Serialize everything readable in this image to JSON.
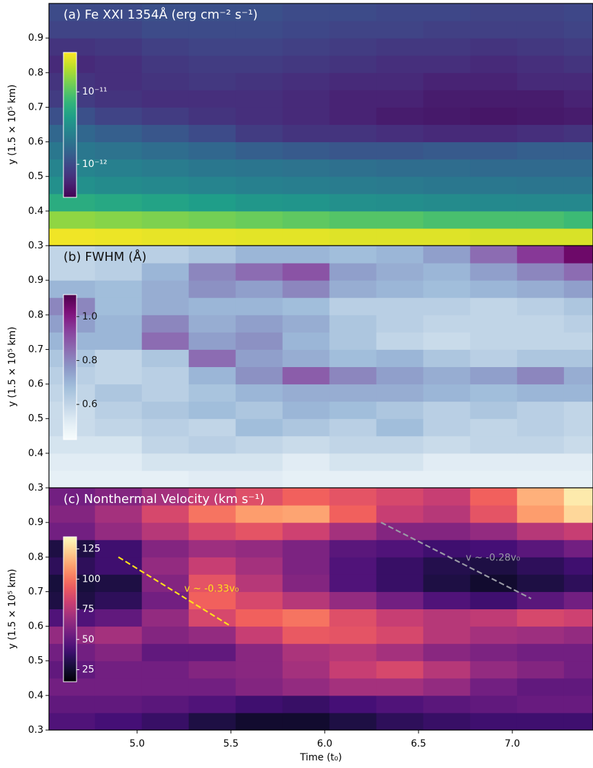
{
  "chart_data": [
    {
      "type": "heatmap",
      "title": "(a) Fe XXI 1354Å (erg cm⁻² s⁻¹)",
      "title_color": "#ffffff",
      "ylabel": "y (1.5 × 10⁵ km)",
      "xlim": [
        4.53,
        7.43
      ],
      "ylim": [
        0.3,
        1.0
      ],
      "yticks": [
        0.3,
        0.4,
        0.5,
        0.6,
        0.7,
        0.8,
        0.9
      ],
      "x": [
        4.65,
        4.9,
        5.15,
        5.4,
        5.65,
        5.9,
        6.15,
        6.4,
        6.65,
        6.9,
        7.15,
        7.4
      ],
      "y": [
        0.325,
        0.375,
        0.425,
        0.475,
        0.525,
        0.575,
        0.625,
        0.675,
        0.725,
        0.775,
        0.825,
        0.875,
        0.925,
        0.975
      ],
      "z": [
        [
          3.2e-11,
          3.1e-11,
          3e-11,
          3e-11,
          2.9e-11,
          2.9e-11,
          2.8e-11,
          2.8e-11,
          2.8e-11,
          2.7e-11,
          2.7e-11,
          2.7e-11
        ],
        [
          1.6e-11,
          1.5e-11,
          1.4e-11,
          1.3e-11,
          1.2e-11,
          1.1e-11,
          1e-11,
          1e-11,
          9e-12,
          9e-12,
          9e-12,
          8e-12
        ],
        [
          6e-12,
          5.5e-12,
          5e-12,
          4.5e-12,
          4e-12,
          3.8e-12,
          3.5e-12,
          3.4e-12,
          3.2e-12,
          3.1e-12,
          3e-12,
          3e-12
        ],
        [
          3.5e-12,
          3.2e-12,
          3e-12,
          2.8e-12,
          2.6e-12,
          2.5e-12,
          2.4e-12,
          2.3e-12,
          2.2e-12,
          2.2e-12,
          2.1e-12,
          2.1e-12
        ],
        [
          2.8e-12,
          2.6e-12,
          2.4e-12,
          2.2e-12,
          2.1e-12,
          2e-12,
          1.9e-12,
          1.8e-12,
          1.8e-12,
          1.7e-12,
          1.7e-12,
          1.7e-12
        ],
        [
          2.2e-12,
          2e-12,
          1.8e-12,
          1.6e-12,
          1.4e-12,
          1.3e-12,
          1.2e-12,
          1.2e-12,
          1.3e-12,
          1.3e-12,
          1.4e-12,
          1.4e-12
        ],
        [
          1.6e-12,
          1.4e-12,
          1.2e-12,
          1e-12,
          8e-13,
          7e-13,
          7e-13,
          6.5e-13,
          6e-13,
          6e-13,
          6.5e-13,
          7e-13
        ],
        [
          1.1e-12,
          9e-13,
          8e-13,
          7e-13,
          6.5e-13,
          6e-13,
          5.5e-13,
          5e-13,
          4.8e-13,
          4.6e-13,
          4.8e-13,
          5e-13
        ],
        [
          8e-13,
          7e-13,
          6.5e-13,
          6.5e-13,
          6.5e-13,
          6e-13,
          5.5e-13,
          5.5e-13,
          5e-13,
          5e-13,
          5e-13,
          5.5e-13
        ],
        [
          7e-13,
          6.5e-13,
          7e-13,
          7.5e-13,
          7e-13,
          6.5e-13,
          6e-13,
          6e-13,
          5.5e-13,
          5.5e-13,
          6e-13,
          6e-13
        ],
        [
          6e-13,
          6.5e-13,
          7.5e-13,
          8e-13,
          8e-13,
          7.5e-13,
          7e-13,
          6.5e-13,
          6.5e-13,
          6e-13,
          6.5e-13,
          7e-13
        ],
        [
          7e-13,
          7.5e-13,
          8.5e-13,
          9e-13,
          9e-13,
          8.5e-13,
          8e-13,
          7.5e-13,
          7.5e-13,
          7e-13,
          7.5e-13,
          8e-13
        ],
        [
          9e-13,
          9e-13,
          1e-12,
          1e-12,
          1e-12,
          9.5e-13,
          9e-13,
          9e-13,
          8.5e-13,
          8.5e-13,
          8.5e-13,
          9e-13
        ],
        [
          1e-12,
          1e-12,
          1.1e-12,
          1.1e-12,
          1.1e-12,
          1e-12,
          1e-12,
          9.5e-13,
          9.5e-13,
          9e-13,
          9e-13,
          9.5e-13
        ]
      ],
      "colorbar": {
        "cmap": "viridis",
        "scale": "log",
        "lim": [
          3.5e-13,
          3.5e-11
        ],
        "label_color": "#ffffff",
        "ticks": [
          {
            "value": 1e-11,
            "label": "10⁻¹¹"
          },
          {
            "value": 1e-12,
            "label": "10⁻¹²"
          }
        ]
      }
    },
    {
      "type": "heatmap",
      "title": "(b) FWHM (Å)",
      "title_color": "#111111",
      "ylabel": "y (1.5 × 10⁵ km)",
      "xlim": [
        4.53,
        7.43
      ],
      "ylim": [
        0.3,
        1.0
      ],
      "yticks": [
        0.3,
        0.4,
        0.5,
        0.6,
        0.7,
        0.8,
        0.9
      ],
      "x": [
        4.65,
        4.9,
        5.15,
        5.4,
        5.65,
        5.9,
        6.15,
        6.4,
        6.65,
        6.9,
        7.15,
        7.4
      ],
      "y": [
        0.325,
        0.375,
        0.425,
        0.475,
        0.525,
        0.575,
        0.625,
        0.675,
        0.725,
        0.775,
        0.825,
        0.875,
        0.925,
        0.975
      ],
      "z": [
        [
          0.5,
          0.5,
          0.5,
          0.52,
          0.52,
          0.5,
          0.5,
          0.5,
          0.5,
          0.5,
          0.5,
          0.5
        ],
        [
          0.52,
          0.52,
          0.55,
          0.55,
          0.55,
          0.52,
          0.55,
          0.55,
          0.52,
          0.52,
          0.52,
          0.52
        ],
        [
          0.55,
          0.55,
          0.6,
          0.62,
          0.6,
          0.58,
          0.6,
          0.6,
          0.58,
          0.6,
          0.6,
          0.58
        ],
        [
          0.58,
          0.6,
          0.62,
          0.6,
          0.68,
          0.65,
          0.62,
          0.68,
          0.62,
          0.6,
          0.62,
          0.6
        ],
        [
          0.58,
          0.62,
          0.65,
          0.68,
          0.65,
          0.7,
          0.68,
          0.65,
          0.62,
          0.65,
          0.62,
          0.6
        ],
        [
          0.6,
          0.65,
          0.62,
          0.66,
          0.7,
          0.72,
          0.72,
          0.72,
          0.7,
          0.68,
          0.7,
          0.7
        ],
        [
          0.62,
          0.6,
          0.62,
          0.7,
          0.78,
          0.88,
          0.8,
          0.75,
          0.72,
          0.75,
          0.8,
          0.72
        ],
        [
          0.65,
          0.6,
          0.65,
          0.85,
          0.75,
          0.72,
          0.68,
          0.7,
          0.65,
          0.62,
          0.65,
          0.65
        ],
        [
          0.7,
          0.7,
          0.85,
          0.75,
          0.78,
          0.7,
          0.65,
          0.6,
          0.58,
          0.6,
          0.6,
          0.6
        ],
        [
          0.75,
          0.7,
          0.8,
          0.72,
          0.75,
          0.72,
          0.65,
          0.62,
          0.6,
          0.6,
          0.6,
          0.62
        ],
        [
          0.8,
          0.68,
          0.72,
          0.7,
          0.7,
          0.68,
          0.62,
          0.62,
          0.62,
          0.6,
          0.62,
          0.65
        ],
        [
          0.7,
          0.68,
          0.72,
          0.78,
          0.75,
          0.8,
          0.72,
          0.7,
          0.68,
          0.7,
          0.72,
          0.75
        ],
        [
          0.6,
          0.62,
          0.7,
          0.8,
          0.85,
          0.9,
          0.75,
          0.72,
          0.7,
          0.75,
          0.8,
          0.85
        ],
        [
          0.6,
          0.62,
          0.62,
          0.65,
          0.7,
          0.7,
          0.68,
          0.7,
          0.75,
          0.85,
          0.95,
          1.05
        ]
      ],
      "colorbar": {
        "cmap": "BuPu",
        "scale": "linear",
        "lim": [
          0.44,
          1.1
        ],
        "label_color": "#111111",
        "ticks": [
          0.6,
          0.8,
          {
            "value": 1.0,
            "label": "1.0"
          }
        ]
      }
    },
    {
      "type": "heatmap",
      "title": "(c) Nonthermal Velocity (km s⁻¹)",
      "title_color": "#ffffff",
      "ylabel": "y (1.5 × 10⁵ km)",
      "xlabel": "Time (t₀)",
      "xlim": [
        4.53,
        7.43
      ],
      "ylim": [
        0.3,
        1.0
      ],
      "yticks": [
        0.3,
        0.4,
        0.5,
        0.6,
        0.7,
        0.8,
        0.9
      ],
      "xticks": [
        {
          "value": 5,
          "label": "5.0"
        },
        5.5,
        {
          "value": 6,
          "label": "6.0"
        },
        6.5,
        {
          "value": 7,
          "label": "7.0"
        }
      ],
      "x": [
        4.65,
        4.9,
        5.15,
        5.4,
        5.65,
        5.9,
        6.15,
        6.4,
        6.65,
        6.9,
        7.15,
        7.4
      ],
      "y": [
        0.325,
        0.375,
        0.425,
        0.475,
        0.525,
        0.575,
        0.625,
        0.675,
        0.725,
        0.775,
        0.825,
        0.875,
        0.925,
        0.975
      ],
      "z": [
        [
          45,
          42,
          38,
          30,
          25,
          25,
          30,
          35,
          38,
          40,
          40,
          40
        ],
        [
          50,
          50,
          48,
          45,
          40,
          38,
          42,
          45,
          48,
          50,
          52,
          52
        ],
        [
          55,
          55,
          55,
          55,
          60,
          65,
          70,
          70,
          65,
          55,
          50,
          50
        ],
        [
          50,
          55,
          55,
          60,
          62,
          70,
          80,
          85,
          75,
          65,
          60,
          55
        ],
        [
          55,
          60,
          50,
          50,
          62,
          72,
          75,
          70,
          62,
          58,
          55,
          55
        ],
        [
          65,
          70,
          60,
          65,
          80,
          92,
          90,
          85,
          75,
          70,
          68,
          65
        ],
        [
          45,
          50,
          65,
          85,
          95,
          100,
          88,
          80,
          75,
          78,
          85,
          82
        ],
        [
          30,
          35,
          55,
          95,
          85,
          75,
          65,
          55,
          45,
          40,
          48,
          55
        ],
        [
          28,
          30,
          60,
          90,
          75,
          60,
          45,
          38,
          30,
          25,
          30,
          35
        ],
        [
          35,
          40,
          65,
          80,
          70,
          58,
          45,
          38,
          32,
          30,
          35,
          40
        ],
        [
          30,
          40,
          60,
          68,
          65,
          58,
          48,
          45,
          40,
          42,
          48,
          55
        ],
        [
          55,
          65,
          75,
          85,
          90,
          82,
          70,
          60,
          60,
          65,
          75,
          80
        ],
        [
          60,
          70,
          85,
          100,
          110,
          112,
          95,
          80,
          75,
          90,
          110,
          125
        ],
        [
          55,
          60,
          70,
          80,
          88,
          95,
          90,
          85,
          80,
          95,
          115,
          130
        ]
      ],
      "colorbar": {
        "cmap": "magma",
        "scale": "linear",
        "lim": [
          15,
          135
        ],
        "label_color": "#ffffff",
        "ticks": [
          25,
          50,
          75,
          100,
          125
        ]
      },
      "annotations": [
        {
          "text": "v ~ -0.33v₀",
          "x": [
            4.9,
            5.5
          ],
          "y": [
            0.8,
            0.6
          ],
          "color": "#ffe11a"
        },
        {
          "text": "v ~ -0.28v₀",
          "x": [
            6.3,
            7.1
          ],
          "y": [
            0.9,
            0.68
          ],
          "color": "#9a9aa6"
        }
      ]
    }
  ]
}
